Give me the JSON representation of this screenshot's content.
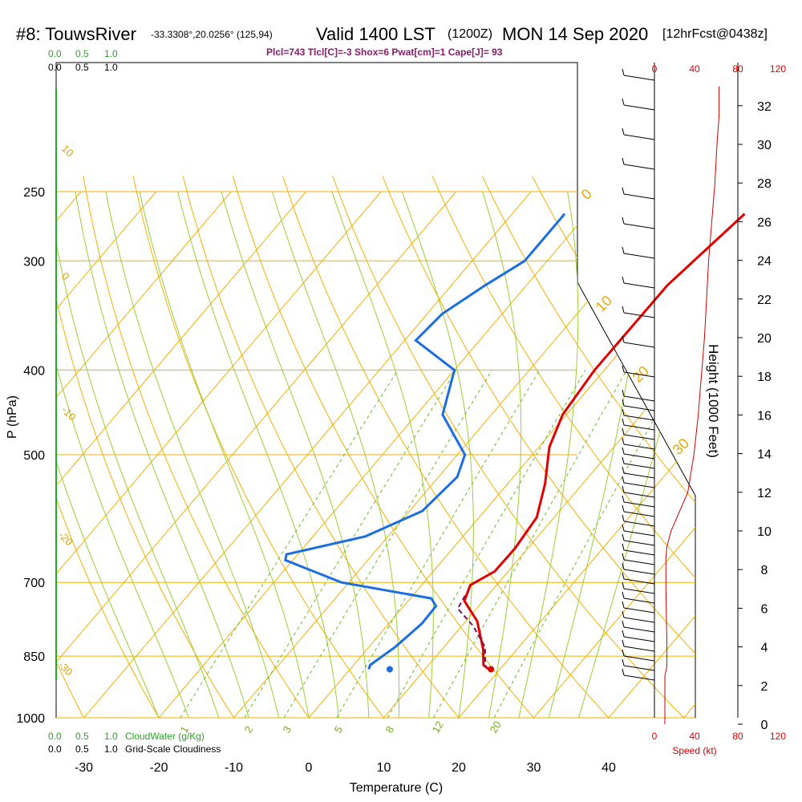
{
  "header": {
    "station": "#8: TouwsRiver",
    "coords": "-33.3308°,20.0256° (125,94)",
    "valid": "Valid 1400 LST",
    "zulu": "(1200Z)",
    "date": "MON 14 Sep 2020",
    "forecast": "[12hrFcst@0438z]"
  },
  "params": "Plcl=743 Tlcl[C]=-3 Shox=6 Pwat[cm]=1 Cape[J]= 93",
  "cloud_scale": {
    "top_green": [
      "0.0",
      "0.5",
      "1.0"
    ],
    "top_black": [
      "0.0",
      "0.5",
      "1.0"
    ],
    "bottom_green": [
      "0.0",
      "0.5",
      "1.0"
    ],
    "bottom_black": [
      "0.0",
      "0.5",
      "1.0"
    ],
    "cloudwater_label": "CloudWater (g/Kg)",
    "cloudiness_label": "Grid-Scale Cloudiness"
  },
  "chart_data": {
    "type": "line",
    "xlabel": "Temperature (C)",
    "ylabel": "P (hPa)",
    "x_ticks": [
      "-30",
      "-20",
      "-10",
      "0",
      "10",
      "20",
      "30",
      "40"
    ],
    "p_ticks": [
      "250",
      "300",
      "400",
      "500",
      "700",
      "850",
      "1000"
    ],
    "height_label": "Height (1000 Feet)",
    "height_ticks": [
      "0",
      "2",
      "4",
      "6",
      "8",
      "10",
      "12",
      "14",
      "16",
      "18",
      "20",
      "22",
      "24",
      "26",
      "28",
      "30",
      "32"
    ],
    "speed_label": "Speed (kt)",
    "speed_ticks": [
      "0",
      "40",
      "80",
      "120"
    ],
    "dry_adiabat_labels": [
      "10",
      "0",
      "-10",
      "-20",
      "-30"
    ],
    "moist_adiabat_labels": [
      "0",
      "10",
      "20",
      "30"
    ],
    "mixing_ratio_labels": [
      "1",
      "2",
      "3",
      "5",
      "8",
      "12",
      "20"
    ],
    "series": [
      {
        "key": "temperature",
        "color": "#e00000",
        "points": [
          [
            1,
            265
          ],
          [
            -1.2,
            320
          ],
          [
            -1.3,
            400
          ],
          [
            -0.5,
            450
          ],
          [
            1.4,
            490
          ],
          [
            5,
            540
          ],
          [
            7.7,
            590
          ],
          [
            8.3,
            640
          ],
          [
            8.2,
            680
          ],
          [
            6.5,
            705
          ],
          [
            7.5,
            735
          ],
          [
            11.5,
            775
          ],
          [
            15.5,
            835
          ],
          [
            17.3,
            870
          ],
          [
            18.5,
            880
          ]
        ]
      },
      {
        "key": "dewpoint",
        "color": "#1a6ee0",
        "points": [
          [
            -23,
            265
          ],
          [
            -23,
            300
          ],
          [
            -25.5,
            320
          ],
          [
            -28,
            345
          ],
          [
            -28.5,
            370
          ],
          [
            -20,
            400
          ],
          [
            -16.5,
            450
          ],
          [
            -9,
            500
          ],
          [
            -7.5,
            530
          ],
          [
            -8.3,
            580
          ],
          [
            -13,
            620
          ],
          [
            -21.5,
            650
          ],
          [
            -21,
            660
          ],
          [
            -11,
            700
          ],
          [
            2.8,
            730
          ],
          [
            4.3,
            745
          ],
          [
            4.4,
            780
          ],
          [
            3.5,
            830
          ],
          [
            2.2,
            870
          ],
          [
            2.5,
            880
          ]
        ]
      },
      {
        "key": "parcel",
        "color": "#7a1060",
        "points": [
          [
            7,
            725
          ],
          [
            7.5,
            750
          ],
          [
            11.5,
            785
          ],
          [
            15.5,
            830
          ],
          [
            17.8,
            875
          ]
        ]
      }
    ],
    "surface_temp": 18.8,
    "surface_dewpoint": 5.3,
    "surface_pressure": 880,
    "wind_speed_profile_kt": [
      [
        0,
        10
      ],
      [
        2.5,
        10
      ],
      [
        3,
        12
      ],
      [
        4,
        12
      ],
      [
        7,
        11
      ],
      [
        8.6,
        11
      ],
      [
        9.2,
        12
      ],
      [
        10,
        16
      ],
      [
        11,
        24
      ],
      [
        12,
        32
      ],
      [
        14,
        38
      ],
      [
        16,
        42
      ],
      [
        18,
        45
      ],
      [
        20,
        48
      ],
      [
        22,
        50
      ],
      [
        24,
        52
      ],
      [
        26,
        55
      ],
      [
        28,
        58
      ],
      [
        30,
        60
      ],
      [
        31.5,
        62
      ],
      [
        33,
        62
      ]
    ]
  }
}
